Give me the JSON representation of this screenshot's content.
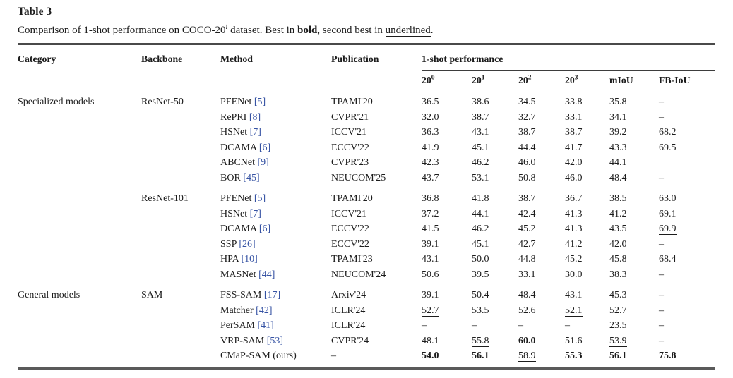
{
  "page": {
    "title": "Table 3",
    "caption": {
      "lead": "Comparison of 1-shot performance on COCO-20",
      "dataset_sup": "i",
      "mid1": " dataset. Best in ",
      "bold_word": "bold",
      "mid2": ", second best in ",
      "underline_word": "underlined",
      "end": "."
    }
  },
  "styles": {
    "accent_blue": "#3552a3",
    "text_color": "#1c1c1c",
    "rule_color": "#4a4a4a",
    "background": "#ffffff"
  },
  "table": {
    "headers": {
      "category": "Category",
      "backbone": "Backbone",
      "method": "Method",
      "publication": "Publication",
      "group": "1-shot performance",
      "subcols": [
        {
          "base": "20",
          "sup": "0"
        },
        {
          "base": "20",
          "sup": "1"
        },
        {
          "base": "20",
          "sup": "2"
        },
        {
          "base": "20",
          "sup": "3"
        },
        {
          "label": "mIoU"
        },
        {
          "label": "FB-IoU"
        }
      ]
    },
    "groups": [
      {
        "category": "Specialized models",
        "blocks": [
          {
            "backbone": "ResNet-50",
            "rows": [
              {
                "method": "PFENet",
                "cite": "[5]",
                "publication": "TPAMI'20",
                "values": [
                  {
                    "v": "36.5"
                  },
                  {
                    "v": "38.6"
                  },
                  {
                    "v": "34.5"
                  },
                  {
                    "v": "33.8"
                  },
                  {
                    "v": "35.8"
                  },
                  {
                    "v": "–"
                  }
                ]
              },
              {
                "method": "RePRI",
                "cite": "[8]",
                "publication": "CVPR'21",
                "values": [
                  {
                    "v": "32.0"
                  },
                  {
                    "v": "38.7"
                  },
                  {
                    "v": "32.7"
                  },
                  {
                    "v": "33.1"
                  },
                  {
                    "v": "34.1"
                  },
                  {
                    "v": "–"
                  }
                ]
              },
              {
                "method": "HSNet",
                "cite": "[7]",
                "publication": "ICCV'21",
                "values": [
                  {
                    "v": "36.3"
                  },
                  {
                    "v": "43.1"
                  },
                  {
                    "v": "38.7"
                  },
                  {
                    "v": "38.7"
                  },
                  {
                    "v": "39.2"
                  },
                  {
                    "v": "68.2"
                  }
                ]
              },
              {
                "method": "DCAMA",
                "cite": "[6]",
                "publication": "ECCV'22",
                "values": [
                  {
                    "v": "41.9"
                  },
                  {
                    "v": "45.1"
                  },
                  {
                    "v": "44.4"
                  },
                  {
                    "v": "41.7"
                  },
                  {
                    "v": "43.3"
                  },
                  {
                    "v": "69.5"
                  }
                ]
              },
              {
                "method": "ABCNet",
                "cite": "[9]",
                "publication": "CVPR'23",
                "values": [
                  {
                    "v": "42.3"
                  },
                  {
                    "v": "46.2"
                  },
                  {
                    "v": "46.0"
                  },
                  {
                    "v": "42.0"
                  },
                  {
                    "v": "44.1"
                  },
                  {
                    "v": ""
                  }
                ]
              },
              {
                "method": "BOR",
                "cite": "[45]",
                "publication": "NEUCOM'25",
                "values": [
                  {
                    "v": "43.7"
                  },
                  {
                    "v": "53.1"
                  },
                  {
                    "v": "50.8"
                  },
                  {
                    "v": "46.0"
                  },
                  {
                    "v": "48.4"
                  },
                  {
                    "v": "–"
                  }
                ]
              }
            ]
          },
          {
            "backbone": "ResNet-101",
            "rows": [
              {
                "method": "PFENet",
                "cite": "[5]",
                "publication": "TPAMI'20",
                "values": [
                  {
                    "v": "36.8"
                  },
                  {
                    "v": "41.8"
                  },
                  {
                    "v": "38.7"
                  },
                  {
                    "v": "36.7"
                  },
                  {
                    "v": "38.5"
                  },
                  {
                    "v": "63.0"
                  }
                ]
              },
              {
                "method": "HSNet",
                "cite": "[7]",
                "publication": "ICCV'21",
                "values": [
                  {
                    "v": "37.2"
                  },
                  {
                    "v": "44.1"
                  },
                  {
                    "v": "42.4"
                  },
                  {
                    "v": "41.3"
                  },
                  {
                    "v": "41.2"
                  },
                  {
                    "v": "69.1"
                  }
                ]
              },
              {
                "method": "DCAMA",
                "cite": "[6]",
                "publication": "ECCV'22",
                "values": [
                  {
                    "v": "41.5"
                  },
                  {
                    "v": "46.2"
                  },
                  {
                    "v": "45.2"
                  },
                  {
                    "v": "41.3"
                  },
                  {
                    "v": "43.5"
                  },
                  {
                    "v": "69.9",
                    "u": true
                  }
                ]
              },
              {
                "method": "SSP",
                "cite": "[26]",
                "publication": "ECCV'22",
                "values": [
                  {
                    "v": "39.1"
                  },
                  {
                    "v": "45.1"
                  },
                  {
                    "v": "42.7"
                  },
                  {
                    "v": "41.2"
                  },
                  {
                    "v": "42.0"
                  },
                  {
                    "v": "–"
                  }
                ]
              },
              {
                "method": "HPA",
                "cite": "[10]",
                "publication": "TPAMI'23",
                "values": [
                  {
                    "v": "43.1"
                  },
                  {
                    "v": "50.0"
                  },
                  {
                    "v": "44.8"
                  },
                  {
                    "v": "45.2"
                  },
                  {
                    "v": "45.8"
                  },
                  {
                    "v": "68.4"
                  }
                ]
              },
              {
                "method": "MASNet",
                "cite": "[44]",
                "publication": "NEUCOM'24",
                "values": [
                  {
                    "v": "50.6"
                  },
                  {
                    "v": "39.5"
                  },
                  {
                    "v": "33.1"
                  },
                  {
                    "v": "30.0"
                  },
                  {
                    "v": "38.3"
                  },
                  {
                    "v": "–"
                  }
                ]
              }
            ]
          }
        ]
      },
      {
        "category": "General models",
        "blocks": [
          {
            "backbone": "SAM",
            "rows": [
              {
                "method": "FSS-SAM",
                "cite": "[17]",
                "publication": "Arxiv'24",
                "values": [
                  {
                    "v": "39.1"
                  },
                  {
                    "v": "50.4"
                  },
                  {
                    "v": "48.4"
                  },
                  {
                    "v": "43.1"
                  },
                  {
                    "v": "45.3"
                  },
                  {
                    "v": "–"
                  }
                ]
              },
              {
                "method": "Matcher",
                "cite": "[42]",
                "publication": "ICLR'24",
                "values": [
                  {
                    "v": "52.7",
                    "u": true
                  },
                  {
                    "v": "53.5"
                  },
                  {
                    "v": "52.6"
                  },
                  {
                    "v": "52.1",
                    "u": true
                  },
                  {
                    "v": "52.7"
                  },
                  {
                    "v": "–"
                  }
                ]
              },
              {
                "method": "PerSAM",
                "cite": "[41]",
                "publication": "ICLR'24",
                "values": [
                  {
                    "v": "–"
                  },
                  {
                    "v": "–"
                  },
                  {
                    "v": "–"
                  },
                  {
                    "v": "–"
                  },
                  {
                    "v": "23.5"
                  },
                  {
                    "v": "–"
                  }
                ]
              },
              {
                "method": "VRP-SAM",
                "cite": "[53]",
                "publication": "CVPR'24",
                "values": [
                  {
                    "v": "48.1"
                  },
                  {
                    "v": "55.8",
                    "u": true
                  },
                  {
                    "v": "60.0",
                    "b": true
                  },
                  {
                    "v": "51.6"
                  },
                  {
                    "v": "53.9",
                    "u": true
                  },
                  {
                    "v": "–"
                  }
                ]
              },
              {
                "method": "CMaP-SAM (ours)",
                "cite": "",
                "publication": "–",
                "values": [
                  {
                    "v": "54.0",
                    "b": true
                  },
                  {
                    "v": "56.1",
                    "b": true
                  },
                  {
                    "v": "58.9",
                    "u": true
                  },
                  {
                    "v": "55.3",
                    "b": true
                  },
                  {
                    "v": "56.1",
                    "b": true
                  },
                  {
                    "v": "75.8",
                    "b": true
                  }
                ]
              }
            ]
          }
        ]
      }
    ]
  }
}
